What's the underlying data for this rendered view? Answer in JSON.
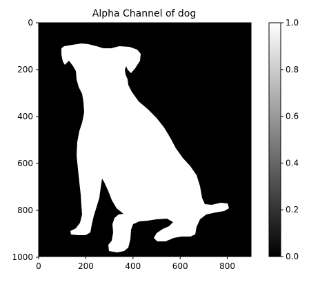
{
  "chart_data": {
    "type": "heatmap",
    "title": "Alpha Channel of dog",
    "xlabel": "",
    "ylabel": "",
    "xlim": [
      0,
      900
    ],
    "ylim": [
      1075,
      0
    ],
    "x_ticks": [
      0,
      200,
      400,
      600,
      800
    ],
    "y_ticks": [
      0,
      200,
      400,
      600,
      800,
      1000
    ],
    "colormap": "gray",
    "colorbar": {
      "range": [
        0.0,
        1.0
      ],
      "ticks": [
        "0.0",
        "0.2",
        "0.4",
        "0.6",
        "0.8",
        "1.0"
      ],
      "position": "right"
    },
    "values": {
      "background": 0.0,
      "dog_silhouette": 1.0
    },
    "grid": false
  },
  "colors": {
    "background": "#000000",
    "foreground": "#ffffff",
    "axes": "#000000"
  }
}
